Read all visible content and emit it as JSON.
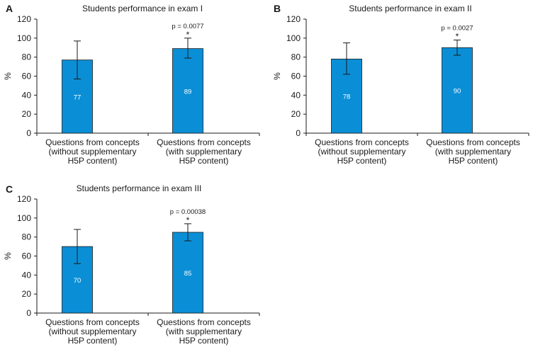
{
  "chart_data": [
    {
      "type": "bar",
      "panel": "A",
      "title": "Students performance in exam I",
      "ylabel": "%",
      "xlabel": "",
      "ylim": [
        0,
        120
      ],
      "yticks": [
        0,
        20,
        40,
        60,
        80,
        100,
        120
      ],
      "categories": [
        [
          "Questions from concepts",
          "(without supplementary",
          "H5P content)"
        ],
        [
          "Questions from concepts",
          "(with supplementary",
          "H5P content)"
        ]
      ],
      "values": [
        77,
        89
      ],
      "error_low": [
        57,
        79
      ],
      "error_high": [
        97,
        100
      ],
      "annotation": {
        "text": "p = 0.0077",
        "mark": "*",
        "bar": 1
      },
      "bar_color": "#0a8fd6"
    },
    {
      "type": "bar",
      "panel": "B",
      "title": "Students performance in exam II",
      "ylabel": "%",
      "xlabel": "",
      "ylim": [
        0,
        120
      ],
      "yticks": [
        0,
        20,
        40,
        60,
        80,
        100,
        120
      ],
      "categories": [
        [
          "Questions from concepts",
          "(without supplementary",
          "H5P content)"
        ],
        [
          "Questions from concepts",
          "(with supplementary",
          "H5P content)"
        ]
      ],
      "values": [
        78,
        90
      ],
      "error_low": [
        62,
        82
      ],
      "error_high": [
        95,
        98
      ],
      "annotation": {
        "text": "p = 0.0027",
        "mark": "*",
        "bar": 1
      },
      "bar_color": "#0a8fd6"
    },
    {
      "type": "bar",
      "panel": "C",
      "title": "Students performance in exam III",
      "ylabel": "%",
      "xlabel": "",
      "ylim": [
        0,
        120
      ],
      "yticks": [
        0,
        20,
        40,
        60,
        80,
        100,
        120
      ],
      "categories": [
        [
          "Questions from concepts",
          "(without supplementary",
          "H5P content)"
        ],
        [
          "Questions from concepts",
          "(with supplementary",
          "H5P content)"
        ]
      ],
      "values": [
        70,
        85
      ],
      "error_low": [
        52,
        76
      ],
      "error_high": [
        88,
        94
      ],
      "annotation": {
        "text": "p = 0.00038",
        "mark": "*",
        "bar": 1
      },
      "bar_color": "#0a8fd6"
    }
  ]
}
